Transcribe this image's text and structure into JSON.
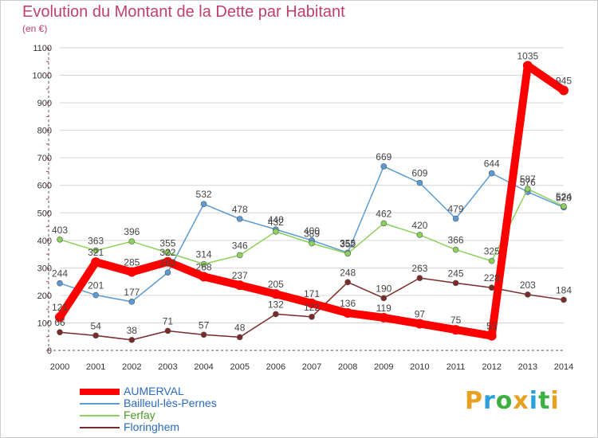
{
  "header": {
    "title": "Evolution du Montant de la Dette par Habitant",
    "subtitle": "(en €)"
  },
  "brand": {
    "text": "Proxiti",
    "colors": [
      "#e8a020",
      "#2aa0d8",
      "#3cb040",
      "#e8a020",
      "#2aa0d8",
      "#3cb040",
      "#e8a020"
    ]
  },
  "chart_data": {
    "type": "line",
    "x": [
      2000,
      2001,
      2002,
      2003,
      2004,
      2005,
      2006,
      2007,
      2008,
      2009,
      2010,
      2011,
      2012,
      2013,
      2014
    ],
    "ylim": [
      0,
      1100
    ],
    "yticks": [
      0,
      100,
      200,
      300,
      400,
      500,
      600,
      700,
      800,
      900,
      1000,
      1100
    ],
    "grid": true,
    "legend_position": "bottom-left",
    "series": [
      {
        "name": "AUMERVAL",
        "color": "#ff0000",
        "values": [
          121,
          321,
          285,
          322,
          268,
          237,
          205,
          171,
          136,
          119,
          97,
          75,
          53,
          1035,
          945
        ]
      },
      {
        "name": "Bailleul-lès-Pernes",
        "color": "#5b9bd5",
        "values": [
          244,
          201,
          177,
          283,
          532,
          478,
          440,
          400,
          355,
          669,
          609,
          479,
          644,
          576,
          520
        ]
      },
      {
        "name": "Ferfay",
        "color": "#8cd25a",
        "values": [
          403,
          363,
          396,
          355,
          314,
          346,
          432,
          389,
          352,
          462,
          420,
          366,
          325,
          587,
          524
        ]
      },
      {
        "name": "Floringhem",
        "color": "#7b2a2a",
        "values": [
          66,
          54,
          38,
          71,
          57,
          48,
          132,
          122,
          248,
          190,
          263,
          245,
          228,
          203,
          184
        ]
      }
    ]
  }
}
